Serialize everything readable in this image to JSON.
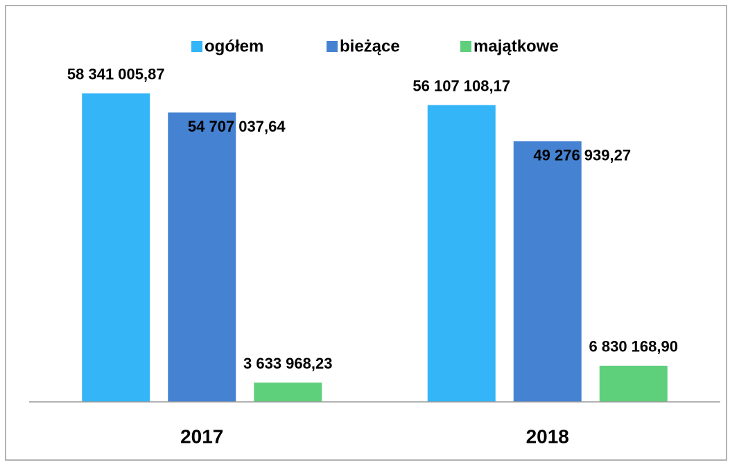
{
  "chart_data": {
    "type": "bar",
    "categories": [
      "2017",
      "2018"
    ],
    "series": [
      {
        "name": "ogółem",
        "color": "#33b5f8",
        "values": [
          58341005.87,
          56107108.17
        ],
        "value_labels": [
          "58 341 005,87",
          "56 107 108,17"
        ]
      },
      {
        "name": "bieżące",
        "color": "#4582d2",
        "values": [
          54707037.64,
          49276939.27
        ],
        "value_labels": [
          "54 707 037,64",
          "49 276 939,27"
        ]
      },
      {
        "name": "majątkowe",
        "color": "#5ecf7b",
        "values": [
          3633968.23,
          6830168.9
        ],
        "value_labels": [
          "3 633 968,23",
          "6 830 168,90"
        ]
      }
    ],
    "ylim": [
      0,
      60000000
    ],
    "legend": "top"
  }
}
